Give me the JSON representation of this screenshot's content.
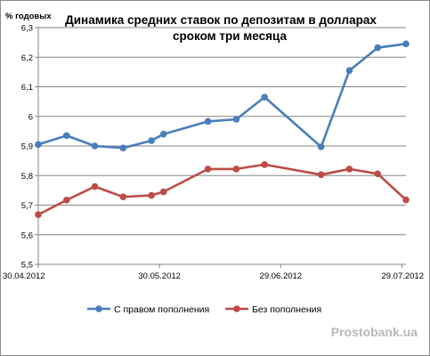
{
  "chart_data": {
    "type": "line",
    "title_lines": [
      "Динамика средних ставок по депозитам в долларах",
      "сроком три месяца"
    ],
    "ylabel": "% годовых",
    "ylim": [
      5.5,
      6.3
    ],
    "y_ticks": [
      "5,5",
      "5,6",
      "5,7",
      "5,8",
      "5,9",
      "6",
      "6,1",
      "6,2",
      "6,3"
    ],
    "y_tick_values": [
      5.5,
      5.6,
      5.7,
      5.8,
      5.9,
      6.0,
      6.1,
      6.2,
      6.3
    ],
    "xlim": [
      "2012-04-30",
      "2012-07-30"
    ],
    "x_ticks": [
      {
        "date": "2012-04-30",
        "label": "30.04.2012"
      },
      {
        "date": "2012-05-30",
        "label": "30.05.2012"
      },
      {
        "date": "2012-06-29",
        "label": "29.06.2012"
      },
      {
        "date": "2012-07-29",
        "label": "29.07.2012"
      }
    ],
    "grid": "horizontal",
    "legend_position": "bottom",
    "series": [
      {
        "name": "С правом пополнения",
        "color": "#4a7ebb",
        "points": [
          {
            "x": "2012-04-30",
            "y": 5.905
          },
          {
            "x": "2012-05-07",
            "y": 5.935
          },
          {
            "x": "2012-05-14",
            "y": 5.9
          },
          {
            "x": "2012-05-21",
            "y": 5.893
          },
          {
            "x": "2012-05-28",
            "y": 5.918
          },
          {
            "x": "2012-05-31",
            "y": 5.94
          },
          {
            "x": "2012-06-11",
            "y": 5.983
          },
          {
            "x": "2012-06-18",
            "y": 5.99
          },
          {
            "x": "2012-06-25",
            "y": 6.065
          },
          {
            "x": "2012-07-09",
            "y": 5.897
          },
          {
            "x": "2012-07-16",
            "y": 6.155
          },
          {
            "x": "2012-07-23",
            "y": 6.232
          },
          {
            "x": "2012-07-30",
            "y": 6.245
          }
        ]
      },
      {
        "name": "Без пополнения",
        "color": "#be4b48",
        "points": [
          {
            "x": "2012-04-30",
            "y": 5.668
          },
          {
            "x": "2012-05-07",
            "y": 5.717
          },
          {
            "x": "2012-05-14",
            "y": 5.763
          },
          {
            "x": "2012-05-21",
            "y": 5.728
          },
          {
            "x": "2012-05-28",
            "y": 5.733
          },
          {
            "x": "2012-05-31",
            "y": 5.745
          },
          {
            "x": "2012-06-11",
            "y": 5.822
          },
          {
            "x": "2012-06-18",
            "y": 5.822
          },
          {
            "x": "2012-06-25",
            "y": 5.837
          },
          {
            "x": "2012-07-09",
            "y": 5.803
          },
          {
            "x": "2012-07-16",
            "y": 5.822
          },
          {
            "x": "2012-07-23",
            "y": 5.806
          },
          {
            "x": "2012-07-30",
            "y": 5.718
          }
        ]
      }
    ]
  },
  "watermark": "Prostobank.ua"
}
